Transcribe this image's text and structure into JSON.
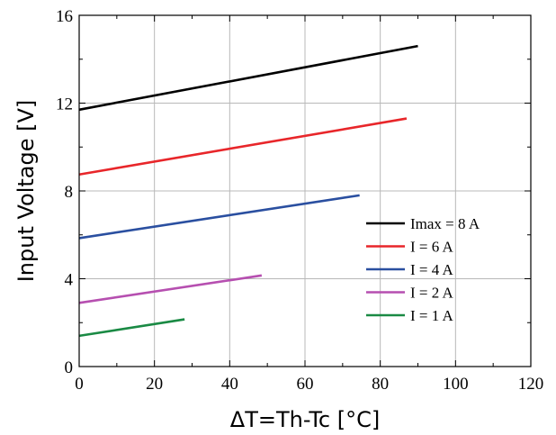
{
  "chart_data": {
    "type": "line",
    "title": "",
    "xlabel": "ΔT=Th-Tc [°C]",
    "ylabel": "Input Voltage [V]",
    "xlim": [
      0,
      120
    ],
    "ylim": [
      0,
      16
    ],
    "xticks": [
      0,
      20,
      40,
      60,
      80,
      100,
      120
    ],
    "yticks": [
      0,
      4,
      8,
      12,
      16
    ],
    "xtick_labels": [
      "0",
      "20",
      "40",
      "60",
      "80",
      "100",
      "120"
    ],
    "ytick_labels": [
      "0",
      "4",
      "8",
      "12",
      "16"
    ],
    "grid": true,
    "legend_position": "lower-right",
    "series": [
      {
        "name": "Imax = 8 A",
        "color": "#000000",
        "x": [
          0,
          90
        ],
        "y": [
          11.7,
          14.6
        ]
      },
      {
        "name": "I = 6 A",
        "color": "#e8262a",
        "x": [
          0,
          87
        ],
        "y": [
          8.75,
          11.3
        ]
      },
      {
        "name": "I = 4 A",
        "color": "#2a4fa0",
        "x": [
          0,
          74.5
        ],
        "y": [
          5.85,
          7.8
        ]
      },
      {
        "name": "I = 2 A",
        "color": "#b64fb0",
        "x": [
          0,
          48.5
        ],
        "y": [
          2.9,
          4.15
        ]
      },
      {
        "name": "I = 1 A",
        "color": "#1a8a44",
        "x": [
          0,
          28
        ],
        "y": [
          1.4,
          2.15
        ]
      }
    ]
  }
}
